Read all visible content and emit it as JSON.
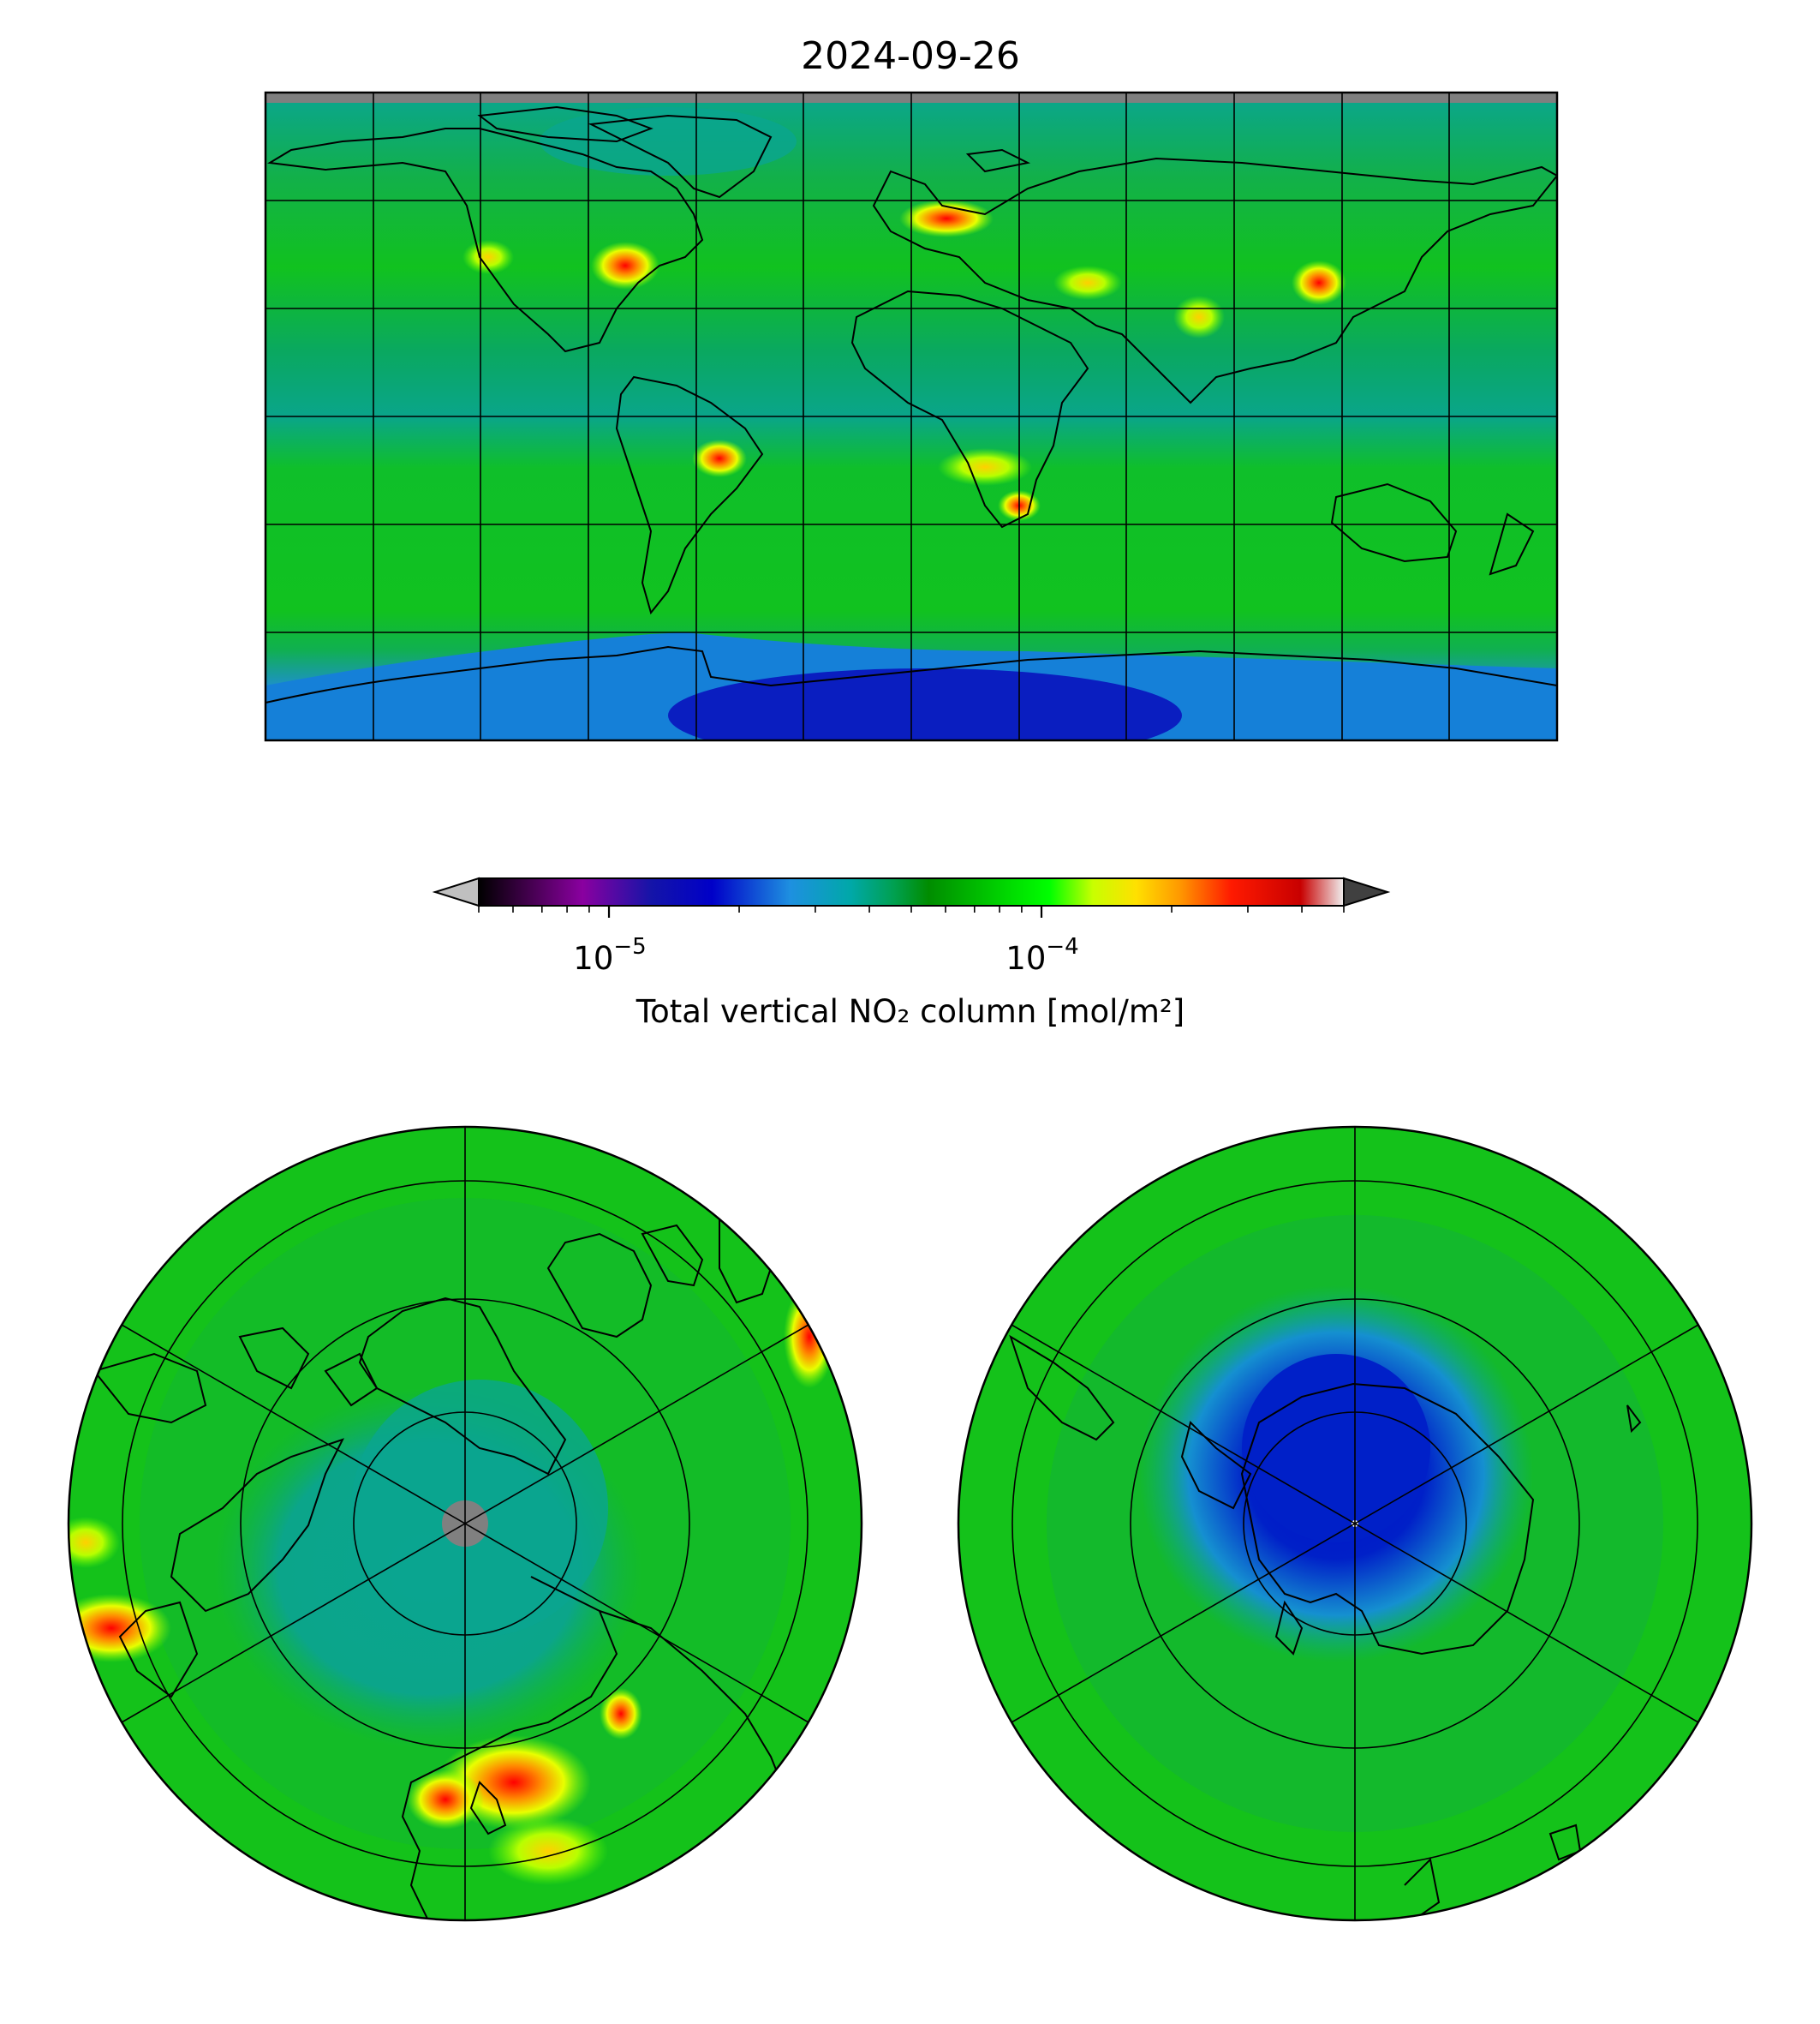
{
  "title": "2024-09-26",
  "colorbar": {
    "label": "Total vertical NO₂ column [mol/m²]",
    "scale": "log",
    "range": [
      5e-06,
      0.0005
    ],
    "ticks": [
      {
        "value": 1e-05,
        "base": "10",
        "exp": "−5"
      },
      {
        "value": 0.0001,
        "base": "10",
        "exp": "−4"
      }
    ],
    "extend": "both",
    "colors": [
      "#000000",
      "#8a00a0",
      "#0000c8",
      "#00a0c8",
      "#00a000",
      "#00ff00",
      "#ffff00",
      "#ff9900",
      "#ff0000",
      "#c80000",
      "#ffffff"
    ]
  },
  "maps": [
    {
      "name": "global",
      "projection": "plate-carree"
    },
    {
      "name": "north-polar",
      "projection": "north-polar-stereographic"
    },
    {
      "name": "south-polar",
      "projection": "south-polar-stereographic"
    }
  ]
}
